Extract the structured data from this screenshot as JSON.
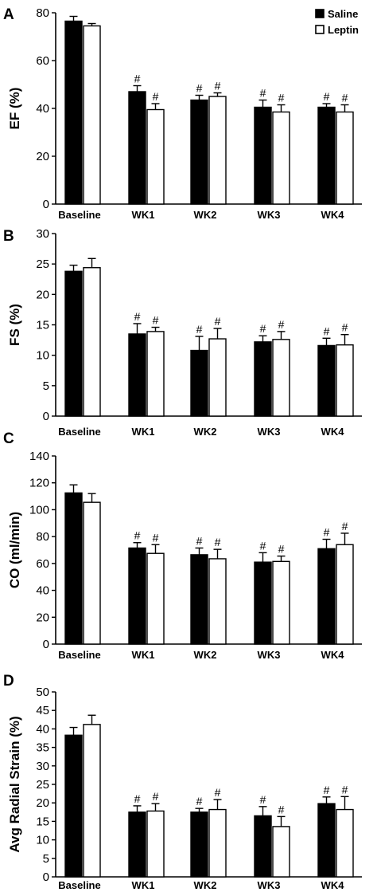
{
  "legend": {
    "items": [
      {
        "name": "Saline",
        "fill": "#000000"
      },
      {
        "name": "Leptin",
        "fill": "#ffffff"
      }
    ],
    "placement": "top-right of panel A"
  },
  "chart_data": [
    {
      "panel": "A",
      "type": "bar",
      "ylabel": "EF (%)",
      "ylim": [
        0,
        80
      ],
      "yticks": [
        0,
        20,
        40,
        60,
        80
      ],
      "categories": [
        "Baseline",
        "WK1",
        "WK2",
        "WK3",
        "WK4"
      ],
      "series": [
        {
          "name": "Saline",
          "color": "#000000",
          "values": [
            76.5,
            47,
            43.5,
            40.5,
            40.5
          ],
          "errors": [
            2,
            2.5,
            2,
            3,
            1.5
          ]
        },
        {
          "name": "Leptin",
          "color": "#ffffff",
          "values": [
            74.5,
            39.5,
            45,
            38.5,
            38.5
          ],
          "errors": [
            1,
            2.5,
            1.5,
            3,
            3
          ]
        }
      ],
      "markers": [
        [
          "",
          ""
        ],
        [
          "#",
          "#"
        ],
        [
          "#",
          "#"
        ],
        [
          "#",
          "#"
        ],
        [
          "#",
          "#"
        ]
      ],
      "grid": false
    },
    {
      "panel": "B",
      "type": "bar",
      "ylabel": "FS (%)",
      "ylim": [
        0,
        30
      ],
      "yticks": [
        0,
        5,
        10,
        15,
        20,
        25,
        30
      ],
      "categories": [
        "Baseline",
        "WK1",
        "WK2",
        "WK3",
        "WK4"
      ],
      "series": [
        {
          "name": "Saline",
          "color": "#000000",
          "values": [
            23.8,
            13.5,
            10.8,
            12.2,
            11.6
          ],
          "errors": [
            1,
            1.7,
            2.3,
            1,
            1.2
          ]
        },
        {
          "name": "Leptin",
          "color": "#ffffff",
          "values": [
            24.4,
            13.9,
            12.7,
            12.6,
            11.7
          ],
          "errors": [
            1.5,
            0.7,
            1.7,
            1.3,
            1.7
          ]
        }
      ],
      "markers": [
        [
          "",
          ""
        ],
        [
          "#",
          "#"
        ],
        [
          "#",
          "#"
        ],
        [
          "#",
          "#"
        ],
        [
          "#",
          "#"
        ]
      ],
      "grid": false
    },
    {
      "panel": "C",
      "type": "bar",
      "ylabel": "CO (ml/min)",
      "ylim": [
        0,
        140
      ],
      "yticks": [
        0,
        20,
        40,
        60,
        80,
        100,
        120,
        140
      ],
      "categories": [
        "Baseline",
        "WK1",
        "WK2",
        "WK3",
        "WK4"
      ],
      "series": [
        {
          "name": "Saline",
          "color": "#000000",
          "values": [
            112.5,
            71.5,
            66.5,
            61,
            71
          ],
          "errors": [
            6,
            4,
            5,
            7,
            7
          ]
        },
        {
          "name": "Leptin",
          "color": "#ffffff",
          "values": [
            105.5,
            67.5,
            63.5,
            61.5,
            74
          ],
          "errors": [
            6.5,
            6.5,
            7,
            4,
            8.5
          ]
        }
      ],
      "markers": [
        [
          "",
          ""
        ],
        [
          "#",
          "#"
        ],
        [
          "#",
          "#"
        ],
        [
          "#",
          "#"
        ],
        [
          "#",
          "#"
        ]
      ],
      "grid": false
    },
    {
      "panel": "D",
      "type": "bar",
      "ylabel": "Avg Radial Strain (%)",
      "ylim": [
        0,
        50
      ],
      "yticks": [
        0,
        5,
        10,
        15,
        20,
        25,
        30,
        35,
        40,
        45,
        50
      ],
      "categories": [
        "Baseline",
        "WK1",
        "WK2",
        "WK3",
        "WK4"
      ],
      "series": [
        {
          "name": "Saline",
          "color": "#000000",
          "values": [
            38.3,
            17.5,
            17.5,
            16.5,
            19.8
          ],
          "errors": [
            2.1,
            1.7,
            1,
            2.5,
            1.8
          ]
        },
        {
          "name": "Leptin",
          "color": "#ffffff",
          "values": [
            41.2,
            17.8,
            18.2,
            13.6,
            18.2
          ],
          "errors": [
            2.5,
            2,
            2.7,
            2.7,
            3.5
          ]
        }
      ],
      "markers": [
        [
          "",
          ""
        ],
        [
          "#",
          "#"
        ],
        [
          "#",
          "#"
        ],
        [
          "#",
          "#"
        ],
        [
          "#",
          "#"
        ]
      ],
      "grid": false
    }
  ]
}
